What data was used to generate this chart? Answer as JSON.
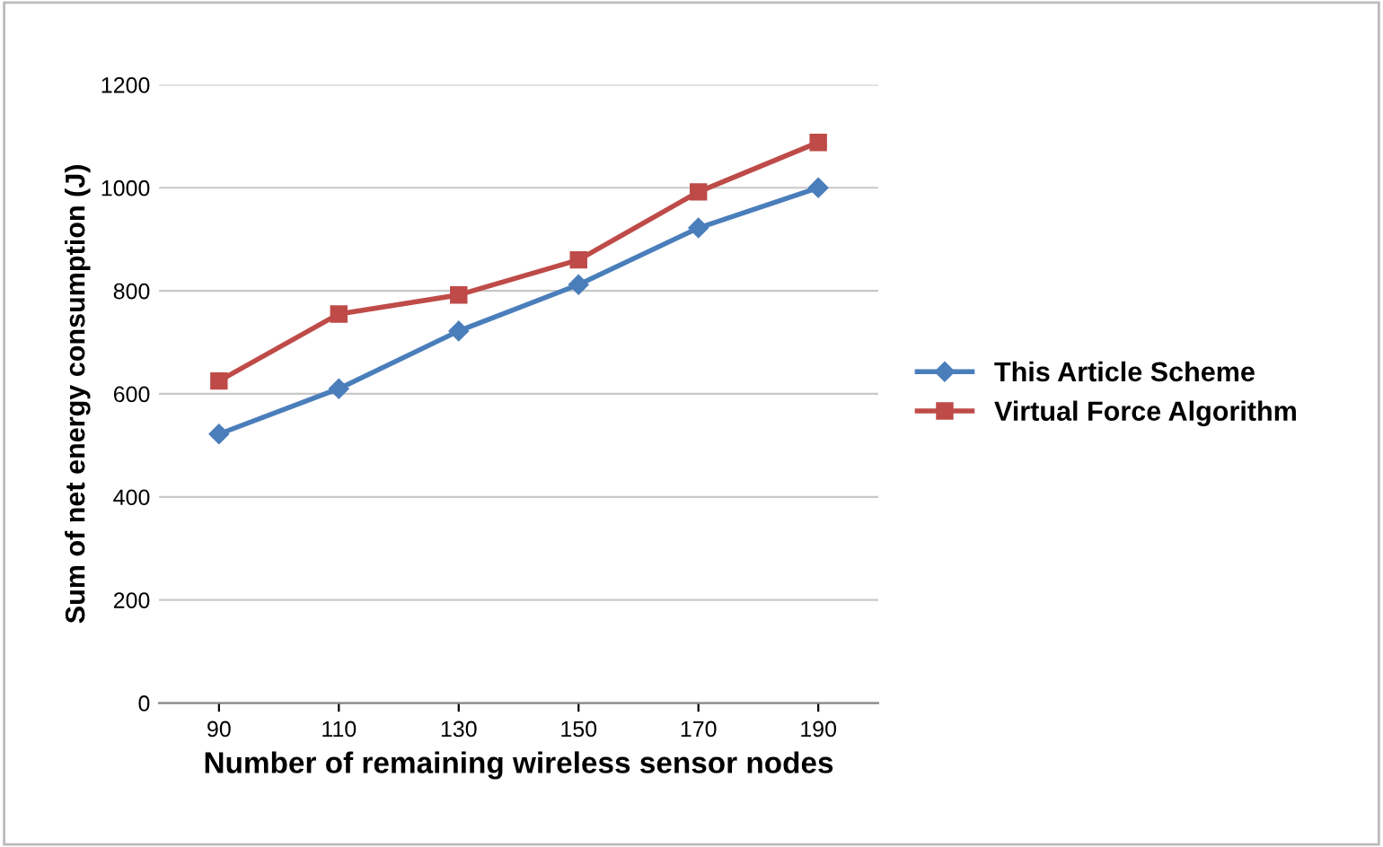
{
  "chart_data": {
    "type": "line",
    "xlabel": "Number of remaining wireless sensor nodes",
    "ylabel": "Sum of net energy consumption (J)",
    "categories": [
      "90",
      "110",
      "130",
      "150",
      "170",
      "190"
    ],
    "series": [
      {
        "name": "This Article Scheme",
        "color": "#4a7ebb",
        "values": [
          522,
          610,
          722,
          812,
          922,
          1000
        ],
        "marker": "diamond"
      },
      {
        "name": "Virtual Force Algorithm",
        "color": "#be4b48",
        "values": [
          625,
          755,
          792,
          860,
          992,
          1088
        ],
        "marker": "square"
      }
    ],
    "ylim": [
      0,
      1200
    ],
    "yticks": [
      0,
      200,
      400,
      600,
      800,
      1000,
      1200
    ],
    "grid": "y",
    "legend": "right",
    "line_style": "solid"
  }
}
